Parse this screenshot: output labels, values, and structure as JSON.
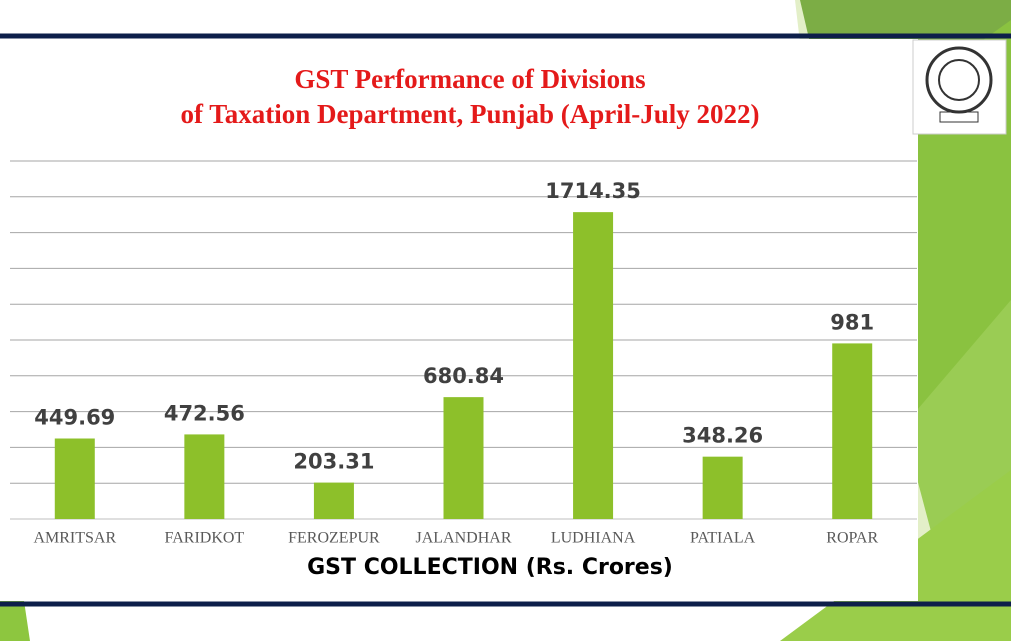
{
  "chart_data": {
    "type": "bar",
    "title": [
      "GST Performance of Divisions",
      "of Taxation Department, Punjab (April-July 2022)"
    ],
    "x_label": "GST COLLECTION (Rs. Crores)",
    "categories": [
      "AMRITSAR",
      "FARIDKOT",
      "FEROZEPUR",
      "JALANDHAR",
      "LUDHIANA",
      "PATIALA",
      "ROPAR"
    ],
    "values": [
      449.69,
      472.56,
      203.31,
      680.84,
      1714.35,
      348.26,
      981
    ],
    "color": "#8dc02a",
    "ylim": [
      0,
      2000
    ],
    "yticks": [
      0,
      200,
      400,
      600,
      800,
      1000,
      1200,
      1400,
      1600,
      1800,
      2000
    ],
    "grid": true
  }
}
